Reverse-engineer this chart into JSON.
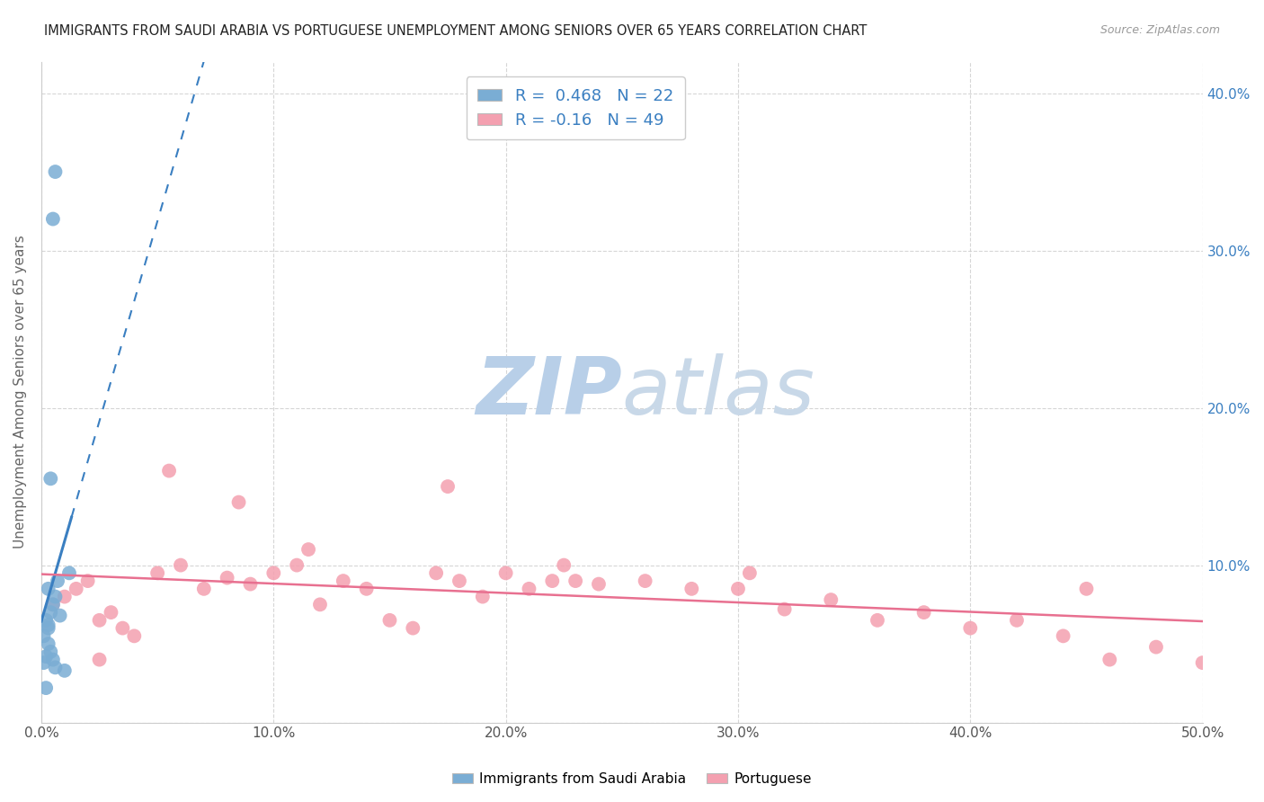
{
  "title": "IMMIGRANTS FROM SAUDI ARABIA VS PORTUGUESE UNEMPLOYMENT AMONG SENIORS OVER 65 YEARS CORRELATION CHART",
  "source": "Source: ZipAtlas.com",
  "ylabel": "Unemployment Among Seniors over 65 years",
  "xlim": [
    0.0,
    0.5
  ],
  "ylim": [
    0.0,
    0.42
  ],
  "xticks": [
    0.0,
    0.1,
    0.2,
    0.3,
    0.4,
    0.5
  ],
  "xtick_labels": [
    "0.0%",
    "10.0%",
    "20.0%",
    "30.0%",
    "40.0%",
    "50.0%"
  ],
  "yticks_right": [
    0.0,
    0.1,
    0.2,
    0.3,
    0.4
  ],
  "ytick_labels_right": [
    "",
    "10.0%",
    "20.0%",
    "30.0%",
    "40.0%"
  ],
  "blue_R": 0.468,
  "blue_N": 22,
  "pink_R": -0.16,
  "pink_N": 49,
  "blue_scatter_x": [
    0.005,
    0.006,
    0.004,
    0.003,
    0.002,
    0.001,
    0.003,
    0.004,
    0.005,
    0.006,
    0.007,
    0.003,
    0.002,
    0.001,
    0.004,
    0.005,
    0.006,
    0.003,
    0.002,
    0.008,
    0.012,
    0.01
  ],
  "blue_scatter_y": [
    0.075,
    0.08,
    0.07,
    0.06,
    0.065,
    0.055,
    0.05,
    0.045,
    0.04,
    0.035,
    0.09,
    0.085,
    0.042,
    0.038,
    0.155,
    0.32,
    0.35,
    0.062,
    0.022,
    0.068,
    0.095,
    0.033
  ],
  "pink_scatter_x": [
    0.005,
    0.01,
    0.015,
    0.02,
    0.025,
    0.03,
    0.035,
    0.04,
    0.05,
    0.06,
    0.07,
    0.08,
    0.09,
    0.1,
    0.11,
    0.12,
    0.13,
    0.14,
    0.15,
    0.16,
    0.17,
    0.18,
    0.19,
    0.2,
    0.21,
    0.22,
    0.23,
    0.24,
    0.26,
    0.28,
    0.3,
    0.32,
    0.34,
    0.36,
    0.38,
    0.4,
    0.42,
    0.44,
    0.46,
    0.48,
    0.5,
    0.025,
    0.055,
    0.085,
    0.115,
    0.175,
    0.225,
    0.305,
    0.45
  ],
  "pink_scatter_y": [
    0.075,
    0.08,
    0.085,
    0.09,
    0.065,
    0.07,
    0.06,
    0.055,
    0.095,
    0.1,
    0.085,
    0.092,
    0.088,
    0.095,
    0.1,
    0.075,
    0.09,
    0.085,
    0.065,
    0.06,
    0.095,
    0.09,
    0.08,
    0.095,
    0.085,
    0.09,
    0.09,
    0.088,
    0.09,
    0.085,
    0.085,
    0.072,
    0.078,
    0.065,
    0.07,
    0.06,
    0.065,
    0.055,
    0.04,
    0.048,
    0.038,
    0.04,
    0.16,
    0.14,
    0.11,
    0.15,
    0.1,
    0.095,
    0.085
  ],
  "background_color": "#ffffff",
  "blue_color": "#7aadd4",
  "pink_color": "#f4a0b0",
  "blue_line_color": "#3a7fc1",
  "pink_line_color": "#e87090",
  "grid_color": "#cccccc",
  "watermark_zip": "ZIP",
  "watermark_atlas": "atlas",
  "watermark_color_zip": "#b8cfe8",
  "watermark_color_atlas": "#c8d8e8"
}
